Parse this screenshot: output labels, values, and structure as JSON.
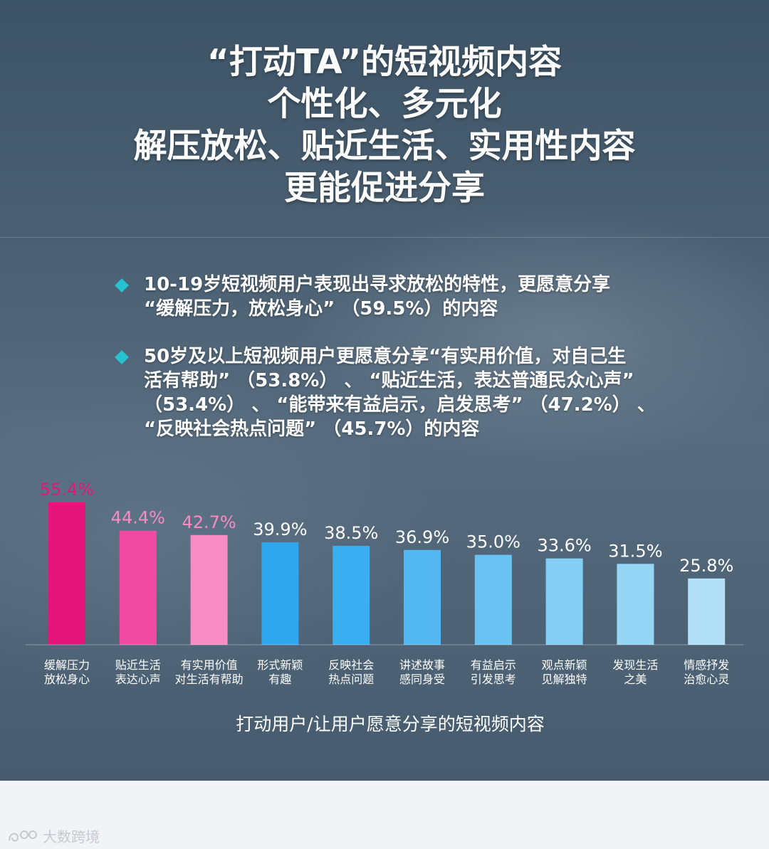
{
  "title_lines": [
    "“打动TA”的短视频内容",
    "个性化、多元化",
    "解压放松、贴近生活、实用性内容",
    "更能促进分享"
  ],
  "bullets": [
    {
      "lines": [
        "10-19岁短视频用户表现出寻求放松的特性，更愿意分享",
        "“缓解压力，放松身心” （59.5%）的内容"
      ]
    },
    {
      "lines": [
        "50岁及以上短视频用户更愿意分享“有实用价值，对自己生",
        "活有帮助” （53.8%） 、 “贴近生活，表达普通民众心声”",
        "（53.4%） 、 “能带来有益启示，启发思考” （47.2%） 、",
        "“反映社会热点问题” （45.7%）的内容"
      ]
    }
  ],
  "chart_data": {
    "type": "bar",
    "title": "",
    "xlabel": "打动用户/让用户愿意分享的短视频内容",
    "ylabel": "",
    "ylim": [
      0,
      60
    ],
    "categories": [
      [
        "缓解压力",
        "放松身心"
      ],
      [
        "贴近生活",
        "表达心声"
      ],
      [
        "有实用价值",
        "对生活有帮助"
      ],
      [
        "形式新颖",
        "有趣"
      ],
      [
        "反映社会",
        "热点问题"
      ],
      [
        "讲述故事",
        "感同身受"
      ],
      [
        "有益启示",
        "引发思考"
      ],
      [
        "观点新颖",
        "见解独特"
      ],
      [
        "发现生活",
        "之美"
      ],
      [
        "情感抒发",
        "治愈心灵"
      ]
    ],
    "values": [
      55.4,
      44.4,
      42.7,
      39.9,
      38.5,
      36.9,
      35.0,
      33.6,
      31.5,
      25.8
    ],
    "value_labels": [
      "55.4%",
      "44.4%",
      "42.7%",
      "39.9%",
      "38.5%",
      "36.9%",
      "35.0%",
      "33.6%",
      "31.5%",
      "25.8%"
    ],
    "bar_colors": [
      "#e6157c",
      "#f04aa2",
      "#f78cc4",
      "#2fa6ee",
      "#3aaef0",
      "#53b8f2",
      "#6ac2f3",
      "#84cdf5",
      "#95d5f6",
      "#b2e0f8"
    ],
    "label_colors": [
      "#e6157c",
      "#f78cc4",
      "#f78cc4",
      "#ffffff",
      "#ffffff",
      "#ffffff",
      "#ffffff",
      "#ffffff",
      "#ffffff",
      "#ffffff"
    ]
  },
  "footer": {
    "brand": "大数跨境",
    "logo_icon": "brand-logo-icon"
  }
}
